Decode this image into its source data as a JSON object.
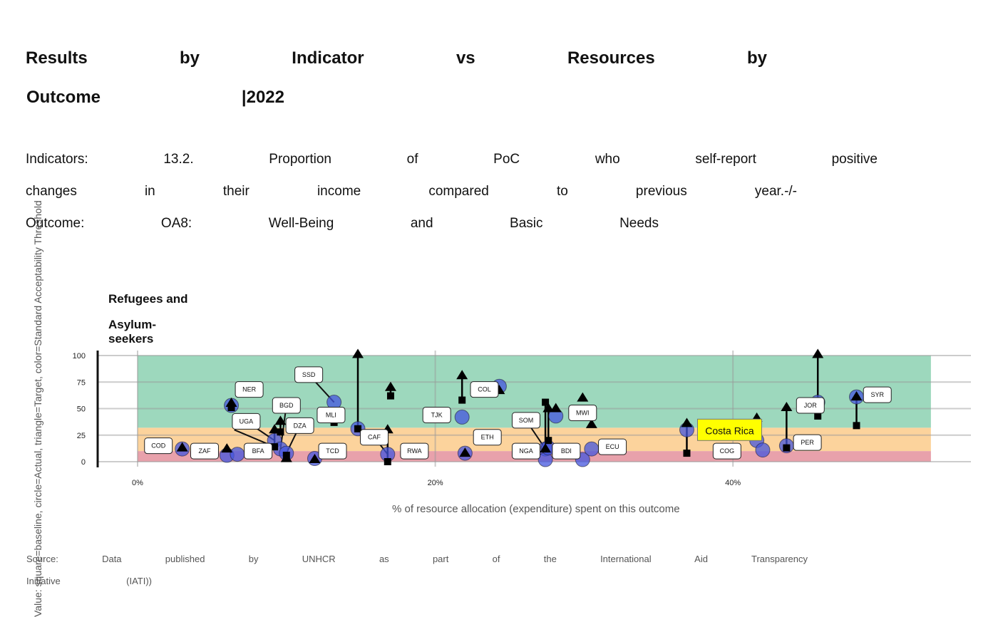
{
  "title_words": [
    "Results",
    "by",
    "Indicator",
    "vs",
    "Resources",
    "by"
  ],
  "title2_words": [
    "Outcome",
    "|2022"
  ],
  "desc_line1": [
    "Indicators:",
    "13.2.",
    "Proportion",
    "of",
    "PoC",
    "who",
    "self-report",
    "positive"
  ],
  "desc_line2": [
    "changes",
    "in",
    "their",
    "income",
    "compared",
    "to",
    "previous",
    "year.-/-"
  ],
  "desc_line3": [
    "Outcome:",
    "OA8:",
    "Well-Being",
    "and",
    "Basic",
    "Needs"
  ],
  "facet_title_lines": [
    "Refugees and",
    "Asylum-seekers"
  ],
  "source_line1": [
    "Source:",
    "Data",
    "published",
    "by",
    "UNHCR",
    "as",
    "part",
    "of",
    "the",
    "International",
    "Aid",
    "Transparency"
  ],
  "source_line2": [
    "Initiative",
    "(IATI))"
  ],
  "chart_data": {
    "type": "scatter",
    "xlabel": "% of resource allocation (expenditure) spent on this outcome",
    "ylabel": "Value: square=baseline, circle=Actual, triangle=Target, color=Standard Acceptability Threshold",
    "x_ticks": [
      "0%",
      "20%",
      "40%"
    ],
    "x_tick_values": [
      0,
      20,
      40
    ],
    "y_ticks": [
      0,
      25,
      50,
      75,
      100
    ],
    "xlim": [
      -2.7,
      56
    ],
    "ylim": [
      -5,
      103
    ],
    "threshold_bands": [
      {
        "from": 0,
        "to": 10,
        "color": "#e8a1ab"
      },
      {
        "from": 10,
        "to": 32,
        "color": "#fcd39c"
      },
      {
        "from": 32,
        "to": 100,
        "color": "#9dd8bd"
      }
    ],
    "band_x_range": [
      0,
      53.3
    ],
    "colors": {
      "actual": "#4455dd",
      "baseline_target": "#000000",
      "highlight": "#ffff00"
    },
    "highlight": {
      "label": "Costa Rica",
      "country": "CRI"
    },
    "points": [
      {
        "code": "COD",
        "x": 3.0,
        "actual": 12,
        "target": 13
      },
      {
        "code": "ZAF",
        "x": 6.0,
        "actual": 6,
        "target": 12
      },
      {
        "code": "BFA",
        "x": 6.7,
        "actual": 7
      },
      {
        "code": "NER",
        "x": 6.3,
        "actual": 53,
        "baseline": 51,
        "target": 55
      },
      {
        "code": "UGA",
        "x": 9.2,
        "actual": 20,
        "baseline": 14,
        "target": 30
      },
      {
        "code": "BGD",
        "x": 9.6,
        "actual": 12,
        "baseline": 28,
        "target": 38
      },
      {
        "code": "DZA",
        "x": 10.0,
        "actual": 8,
        "baseline": 6,
        "target": 3
      },
      {
        "code": "TCD",
        "x": 11.9,
        "actual": 3,
        "target": 2
      },
      {
        "code": "SSD",
        "x": 13.2,
        "actual": 56
      },
      {
        "code": "MLI",
        "x": 13.2,
        "baseline": 37
      },
      {
        "code": "LKA-hidden",
        "x": 14.8,
        "actual": 31,
        "baseline": 31,
        "target": 101
      },
      {
        "code": "CAF",
        "x": 16.8,
        "actual": 7,
        "baseline": 0,
        "target": 30
      },
      {
        "code": "RWA",
        "x": 17.0,
        "baseline": 62,
        "target": 70
      },
      {
        "code": "TJK",
        "x": 21.8,
        "actual": 42,
        "baseline": 58,
        "target": 81
      },
      {
        "code": "ETH",
        "x": 22.0,
        "actual": 8,
        "target": 8
      },
      {
        "code": "COL",
        "x": 24.3,
        "actual": 71,
        "target": 67
      },
      {
        "code": "SOM",
        "x": 27.4,
        "actual": 12,
        "baseline": 56,
        "target": 12
      },
      {
        "code": "NGA",
        "x": 27.4,
        "actual": 2
      },
      {
        "code": "BDI",
        "x": 27.6,
        "actual": 13,
        "baseline": 20,
        "target": 50
      },
      {
        "code": "MWI",
        "x": 28.1,
        "actual": 43,
        "target": 50
      },
      {
        "code": "ECU",
        "x": 29.9,
        "actual": 2,
        "target": 60
      },
      {
        "code": "ECU2",
        "x": 30.5,
        "actual": 12,
        "target": 35
      },
      {
        "code": "CRI",
        "x": 36.9,
        "actual": 30,
        "baseline": 8,
        "target": 36
      },
      {
        "code": "COG",
        "x": 41.6,
        "actual": 20,
        "target": 41
      },
      {
        "code": "COG2",
        "x": 42.0,
        "actual": 11
      },
      {
        "code": "PER",
        "x": 43.6,
        "actual": 15,
        "baseline": 13,
        "target": 51
      },
      {
        "code": "JOR",
        "x": 45.7,
        "actual": 56,
        "baseline": 43,
        "target": 101
      },
      {
        "code": "SYR",
        "x": 48.3,
        "actual": 61,
        "baseline": 34,
        "target": 61
      }
    ],
    "labels": [
      {
        "text": "COD",
        "x": 1.4,
        "y": 15
      },
      {
        "text": "ZAF",
        "x": 4.5,
        "y": 10
      },
      {
        "text": "BFA",
        "x": 8.1,
        "y": 10
      },
      {
        "text": "NER",
        "x": 7.5,
        "y": 68
      },
      {
        "text": "UGA",
        "x": 7.3,
        "y": 38
      },
      {
        "text": "BGD",
        "x": 10.0,
        "y": 53
      },
      {
        "text": "DZA",
        "x": 10.9,
        "y": 34
      },
      {
        "text": "TCD",
        "x": 13.1,
        "y": 10
      },
      {
        "text": "SSD",
        "x": 11.5,
        "y": 82
      },
      {
        "text": "MLI",
        "x": 13.0,
        "y": 44
      },
      {
        "text": "CAF",
        "x": 15.9,
        "y": 23
      },
      {
        "text": "RWA",
        "x": 18.6,
        "y": 10
      },
      {
        "text": "TJK",
        "x": 20.1,
        "y": 44
      },
      {
        "text": "ETH",
        "x": 23.5,
        "y": 23
      },
      {
        "text": "COL",
        "x": 23.3,
        "y": 68
      },
      {
        "text": "SOM",
        "x": 26.1,
        "y": 39
      },
      {
        "text": "NGA",
        "x": 26.1,
        "y": 10
      },
      {
        "text": "BDI",
        "x": 28.8,
        "y": 10
      },
      {
        "text": "MWI",
        "x": 29.9,
        "y": 46
      },
      {
        "text": "ECU",
        "x": 31.9,
        "y": 14
      },
      {
        "text": "COG",
        "x": 39.6,
        "y": 10
      },
      {
        "text": "PER",
        "x": 45.0,
        "y": 18
      },
      {
        "text": "JOR",
        "x": 45.2,
        "y": 53
      },
      {
        "text": "SYR",
        "x": 49.7,
        "y": 63
      }
    ],
    "leader_lines": [
      {
        "x1": 13.2,
        "y1": 56,
        "x2": 11.5,
        "y2": 82
      },
      {
        "x1": 9.2,
        "y1": 20,
        "x2": 7.3,
        "y2": 38
      },
      {
        "x1": 9.6,
        "y1": 12,
        "x2": 10.0,
        "y2": 53
      },
      {
        "x1": 10.0,
        "y1": 8,
        "x2": 10.9,
        "y2": 34
      },
      {
        "x1": 16.8,
        "y1": 7,
        "x2": 15.9,
        "y2": 23
      },
      {
        "x1": 27.4,
        "y1": 12,
        "x2": 26.1,
        "y2": 39
      },
      {
        "x1": 9.2,
        "y1": 14,
        "x2": 6.5,
        "y2": 30
      }
    ]
  }
}
